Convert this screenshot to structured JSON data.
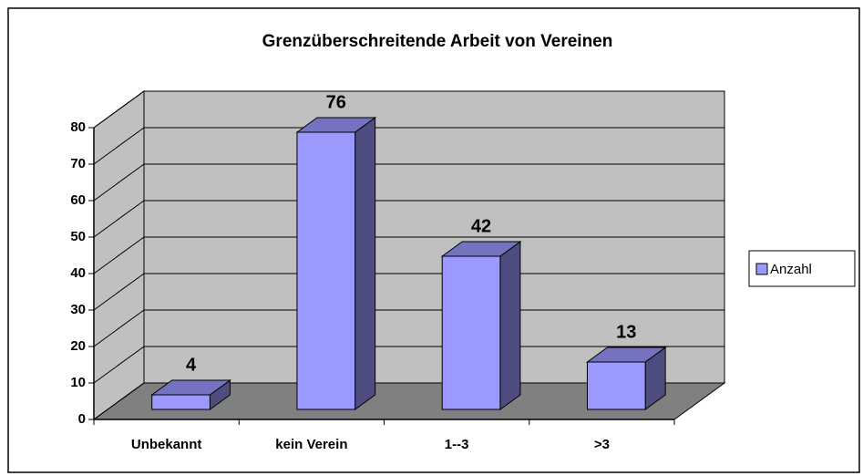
{
  "chart_data": {
    "type": "bar3d",
    "title": "Grenzüberschreitende Arbeit von Vereinen",
    "categories": [
      "Unbekannt",
      "kein Verein",
      "1--3",
      ">3"
    ],
    "series": [
      {
        "name": "Anzahl",
        "color": "#9999ff",
        "values": [
          4,
          76,
          42,
          13
        ]
      }
    ],
    "ylim": [
      0,
      80
    ],
    "yticks": [
      0,
      10,
      20,
      30,
      40,
      50,
      60,
      70,
      80
    ],
    "grid": true,
    "legend": "right"
  }
}
